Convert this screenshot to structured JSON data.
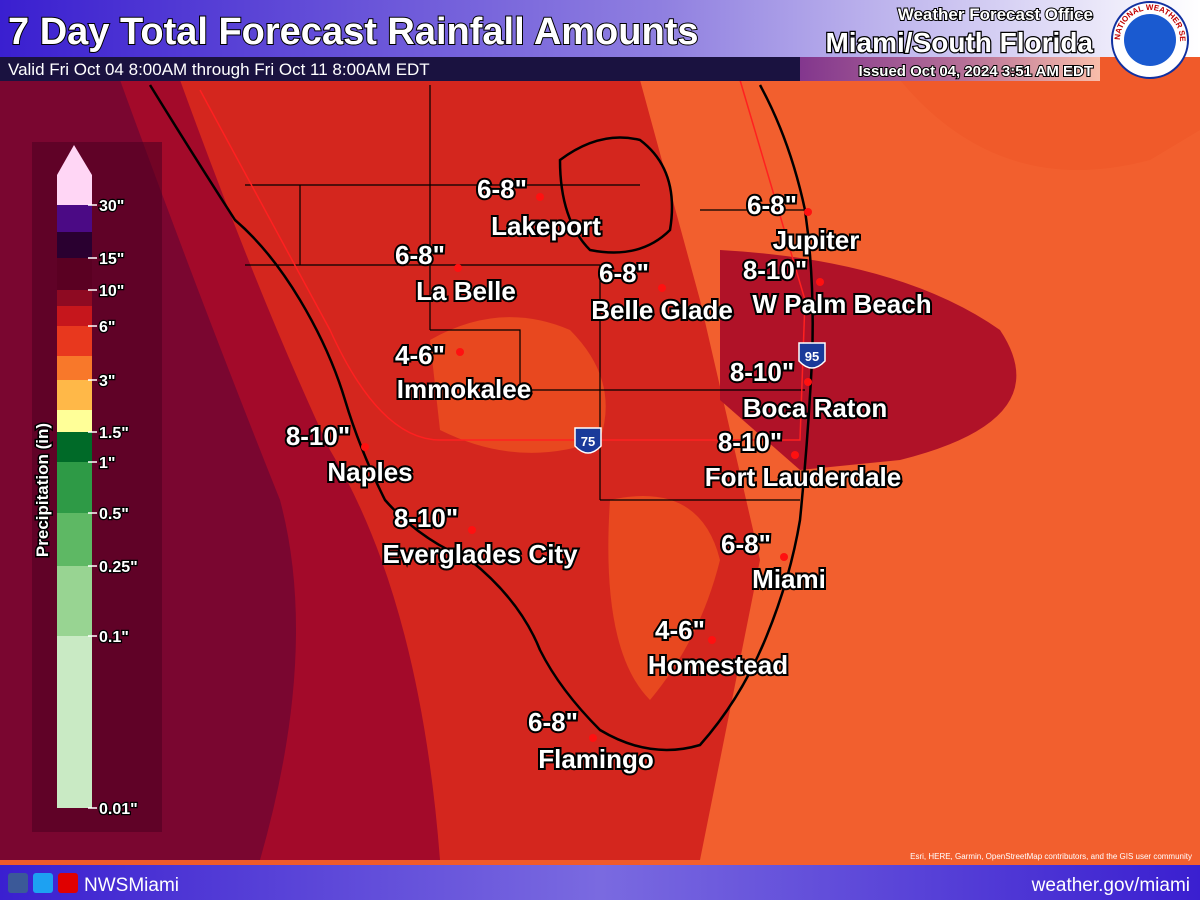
{
  "header": {
    "title": "7 Day Total Forecast Rainfall Amounts",
    "valid": "Valid Fri Oct 04 8:00AM through Fri Oct 11 8:00AM EDT",
    "office": "Weather Forecast Office",
    "location": "Miami/South Florida",
    "issued": "Issued Oct 04, 2024 3:51 AM EDT",
    "logo": "NATIONAL WEATHER SERVICE"
  },
  "legend": {
    "title": "Precipitation (in)",
    "labels": [
      "30\"",
      "15\"",
      "10\"",
      "6\"",
      "3\"",
      "1.5\"",
      "1\"",
      "0.5\"",
      "0.25\"",
      "0.1\"",
      "0.01\""
    ]
  },
  "highways": [
    "75",
    "95"
  ],
  "cities": [
    {
      "amount": "6-8\"",
      "name": "Lakeport"
    },
    {
      "amount": "6-8\"",
      "name": "La Belle"
    },
    {
      "amount": "6-8\"",
      "name": "Belle Glade"
    },
    {
      "amount": "6-8\"",
      "name": "Jupiter"
    },
    {
      "amount": "8-10\"",
      "name": "W Palm Beach"
    },
    {
      "amount": "4-6\"",
      "name": "Immokalee"
    },
    {
      "amount": "8-10\"",
      "name": "Boca Raton"
    },
    {
      "amount": "8-10\"",
      "name": "Naples"
    },
    {
      "amount": "8-10\"",
      "name": "Fort Lauderdale"
    },
    {
      "amount": "8-10\"",
      "name": "Everglades City"
    },
    {
      "amount": "6-8\"",
      "name": "Miami"
    },
    {
      "amount": "4-6\"",
      "name": "Homestead"
    },
    {
      "amount": "6-8\"",
      "name": "Flamingo"
    }
  ],
  "footer": {
    "handle": "NWSMiami",
    "url": "weather.gov/miami",
    "attribution": "Esri, HERE, Garmin, OpenStreetMap contributors, and the GIS user community"
  }
}
